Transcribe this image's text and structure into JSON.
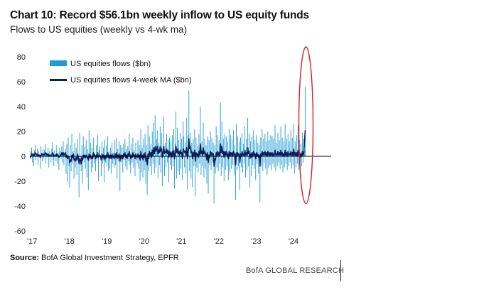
{
  "header": {
    "title": "Chart 10: Record $56.1bn weekly inflow to US equity funds",
    "subtitle": "Flows to US equities (weekly vs 4-wk ma)"
  },
  "footer": {
    "source_label": "Source:",
    "source_text": " BofA Global Investment Strategy, EPFR",
    "brand": "BofA GLOBAL RESEARCH"
  },
  "colors": {
    "bars": "#1e9bd7",
    "ma_line": "#0b1f5c",
    "highlight": "#d62027",
    "axis": "#000000"
  },
  "chart_data": {
    "type": "bar",
    "title": "Chart 10: Record $56.1bn weekly inflow to US equity funds",
    "subtitle": "Flows to US equities (weekly vs 4-wk ma)",
    "xlabel": "",
    "ylabel": "",
    "ylim": [
      -60,
      80
    ],
    "y_ticks": [
      80,
      60,
      40,
      20,
      0,
      -20,
      -40,
      -60
    ],
    "x_ticks": [
      "'17",
      "'18",
      "'19",
      "'20",
      "'21",
      "'22",
      "'23",
      "'24"
    ],
    "x_tick_week_index": [
      0,
      52,
      104,
      156,
      208,
      260,
      312,
      364
    ],
    "annotation": "Red ellipse highlighting record weekly inflow of $56.1bn in 2024",
    "series": [
      {
        "name": "US equities flows ($bn)",
        "kind": "bar",
        "values": [
          -2,
          4,
          7,
          -5,
          3,
          -8,
          5,
          9,
          -3,
          2,
          6,
          -7,
          4,
          1,
          -10,
          8,
          3,
          -4,
          6,
          -2,
          5,
          10,
          -6,
          3,
          -1,
          7,
          -9,
          4,
          2,
          -5,
          6,
          11,
          -3,
          -8,
          5,
          2,
          -4,
          9,
          -6,
          3,
          -11,
          7,
          4,
          -2,
          8,
          -5,
          12,
          -7,
          3,
          6,
          -14,
          10,
          -21,
          15,
          -8,
          -25,
          9,
          -12,
          18,
          -6,
          4,
          -18,
          11,
          -9,
          7,
          -15,
          14,
          -3,
          -33,
          19,
          -7,
          -12,
          9,
          -22,
          16,
          -5,
          8,
          -10,
          13,
          -17,
          6,
          -27,
          21,
          -4,
          11,
          -13,
          7,
          -9,
          15,
          -6,
          3,
          -12,
          9,
          -4,
          17,
          -20,
          5,
          8,
          -3,
          -16,
          12,
          -6,
          7,
          -21,
          13,
          -5,
          9,
          -8,
          16,
          -12,
          4,
          -10,
          7,
          -14,
          11,
          -6,
          3,
          -9,
          13,
          -7,
          15,
          -18,
          6,
          -4,
          12,
          -28,
          9,
          -5,
          7,
          -13,
          10,
          -3,
          14,
          -8,
          6,
          -11,
          8,
          -4,
          18,
          -7,
          -14,
          10,
          -5,
          15,
          -9,
          5,
          -16,
          11,
          -3,
          -6,
          13,
          -10,
          9,
          -20,
          22,
          -13,
          7,
          -17,
          14,
          -11,
          18,
          -22,
          9,
          -31,
          25,
          -12,
          16,
          -8,
          10,
          -15,
          20,
          -6,
          27,
          -14,
          33,
          -9,
          14,
          21,
          -18,
          11,
          -7,
          24,
          -13,
          19,
          -24,
          8,
          32,
          -16,
          11,
          -9,
          18,
          -5,
          13,
          -21,
          15,
          -7,
          12,
          -11,
          17,
          -8,
          22,
          -26,
          10,
          36,
          -18,
          23,
          -12,
          13,
          -15,
          19,
          -10,
          14,
          -19,
          28,
          16,
          -9,
          11,
          -14,
          31,
          -27,
          17,
          53,
          -12,
          19,
          -18,
          11,
          -25,
          14,
          -8,
          22,
          -32,
          15,
          -9,
          8,
          -13,
          18,
          -6,
          40,
          -15,
          12,
          -8,
          27,
          -17,
          14,
          -10,
          9,
          -22,
          16,
          -30,
          13,
          -7,
          20,
          -11,
          15,
          -5,
          11,
          -38,
          9,
          -14,
          24,
          -9,
          17,
          -12,
          13,
          -6,
          43,
          -16,
          28,
          -9,
          14,
          -20,
          18,
          -11,
          16,
          -8,
          12,
          -19,
          22,
          -13,
          17,
          -10,
          14,
          -7,
          21,
          -15,
          9,
          -35,
          26,
          -11,
          16,
          -8,
          12,
          -27,
          15,
          -9,
          19,
          -13,
          10,
          -6,
          24,
          -17,
          14,
          -11,
          31,
          -8,
          18,
          -25,
          12,
          -16,
          16,
          -7,
          21,
          -10,
          13,
          -19,
          17,
          -6,
          11,
          -14,
          9,
          -37,
          15,
          -8,
          22,
          -12,
          14,
          -5,
          18,
          -10,
          12,
          -15,
          20,
          -9,
          13,
          -7,
          17,
          -11,
          16,
          -6,
          14,
          -9,
          25,
          -12,
          11,
          -8,
          19,
          -5,
          13,
          -10,
          24,
          -7,
          15,
          -13,
          12,
          -9,
          26,
          -6,
          14,
          -11,
          18,
          -8,
          12,
          -5,
          21,
          -10,
          15,
          -7,
          26,
          -14,
          12,
          -9,
          17,
          -6,
          25,
          -11,
          13,
          -17,
          10,
          -8,
          19,
          -5,
          14,
          5,
          56
        ],
        "color": "#1e9bd7"
      },
      {
        "name": "US equities flows 4-week MA ($bn)",
        "kind": "line",
        "values": [
          -1,
          0,
          2,
          1,
          2,
          0,
          1,
          3,
          2,
          1,
          2,
          0,
          1,
          1,
          -1,
          1,
          2,
          1,
          2,
          1,
          2,
          3,
          1,
          2,
          1,
          2,
          0,
          1,
          1,
          0,
          1,
          3,
          2,
          0,
          1,
          1,
          0,
          2,
          1,
          1,
          -1,
          0,
          1,
          1,
          3,
          1,
          3,
          1,
          2,
          3,
          -1,
          1,
          -2,
          0,
          -1,
          -5,
          -3,
          -4,
          1,
          -1,
          2,
          -3,
          -2,
          -4,
          -1,
          -3,
          2,
          -1,
          -6,
          -2,
          -3,
          -6,
          -1,
          -3,
          1,
          -1,
          1,
          -1,
          1,
          -1,
          -1,
          -3,
          2,
          -1,
          1,
          -2,
          0,
          -2,
          3,
          0,
          1,
          -2,
          1,
          -1,
          3,
          -1,
          0,
          1,
          0,
          -3,
          2,
          -1,
          1,
          -3,
          1,
          -2,
          1,
          -1,
          3,
          -1,
          1,
          -2,
          1,
          -2,
          2,
          -1,
          0,
          -2,
          2,
          -1,
          3,
          -2,
          1,
          -1,
          2,
          -4,
          1,
          -2,
          1,
          -2,
          2,
          0,
          3,
          -1,
          1,
          -2,
          2,
          0,
          4,
          1,
          -2,
          1,
          -1,
          3,
          0,
          1,
          -2,
          2,
          0,
          -1,
          2,
          -1,
          1,
          -3,
          4,
          -1,
          1,
          -3,
          2,
          -1,
          3,
          -4,
          -1,
          -7,
          2,
          -2,
          4,
          1,
          3,
          -1,
          5,
          1,
          7,
          2,
          8,
          4,
          6,
          8,
          2,
          5,
          3,
          8,
          4,
          6,
          -1,
          3,
          8,
          2,
          4,
          3,
          6,
          2,
          5,
          -1,
          4,
          1,
          3,
          -1,
          4,
          1,
          5,
          -2,
          2,
          8,
          3,
          6,
          2,
          4,
          1,
          5,
          2,
          3,
          -2,
          6,
          5,
          3,
          4,
          1,
          7,
          -2,
          5,
          14,
          6,
          8,
          3,
          4,
          -2,
          3,
          1,
          5,
          -4,
          3,
          1,
          2,
          -1,
          4,
          1,
          10,
          2,
          4,
          1,
          7,
          2,
          4,
          1,
          2,
          -3,
          3,
          -5,
          1,
          -1,
          4,
          1,
          3,
          1,
          2,
          -8,
          -2,
          -3,
          3,
          0,
          4,
          1,
          3,
          0,
          10,
          3,
          8,
          2,
          4,
          -1,
          4,
          1,
          4,
          1,
          2,
          -2,
          4,
          0,
          3,
          1,
          3,
          0,
          4,
          1,
          2,
          -7,
          3,
          0,
          3,
          1,
          2,
          -5,
          2,
          0,
          4,
          1,
          2,
          0,
          5,
          1,
          3,
          1,
          7,
          2,
          4,
          -2,
          2,
          -1,
          3,
          0,
          4,
          1,
          2,
          -2,
          3,
          0,
          2,
          -1,
          1,
          -8,
          2,
          0,
          4,
          1,
          3,
          1,
          4,
          1,
          3,
          0,
          4,
          1,
          3,
          0,
          3,
          1,
          3,
          0,
          2,
          1,
          5,
          1,
          2,
          1,
          4,
          1,
          3,
          1,
          5,
          1,
          3,
          0,
          2,
          0,
          5,
          1,
          3,
          0,
          4,
          1,
          2,
          1,
          4,
          1,
          3,
          0,
          6,
          1,
          3,
          0,
          3,
          0,
          5,
          1,
          3,
          -1,
          2,
          0,
          4,
          1,
          3,
          12,
          21
        ],
        "color": "#0b1f5c"
      }
    ]
  }
}
